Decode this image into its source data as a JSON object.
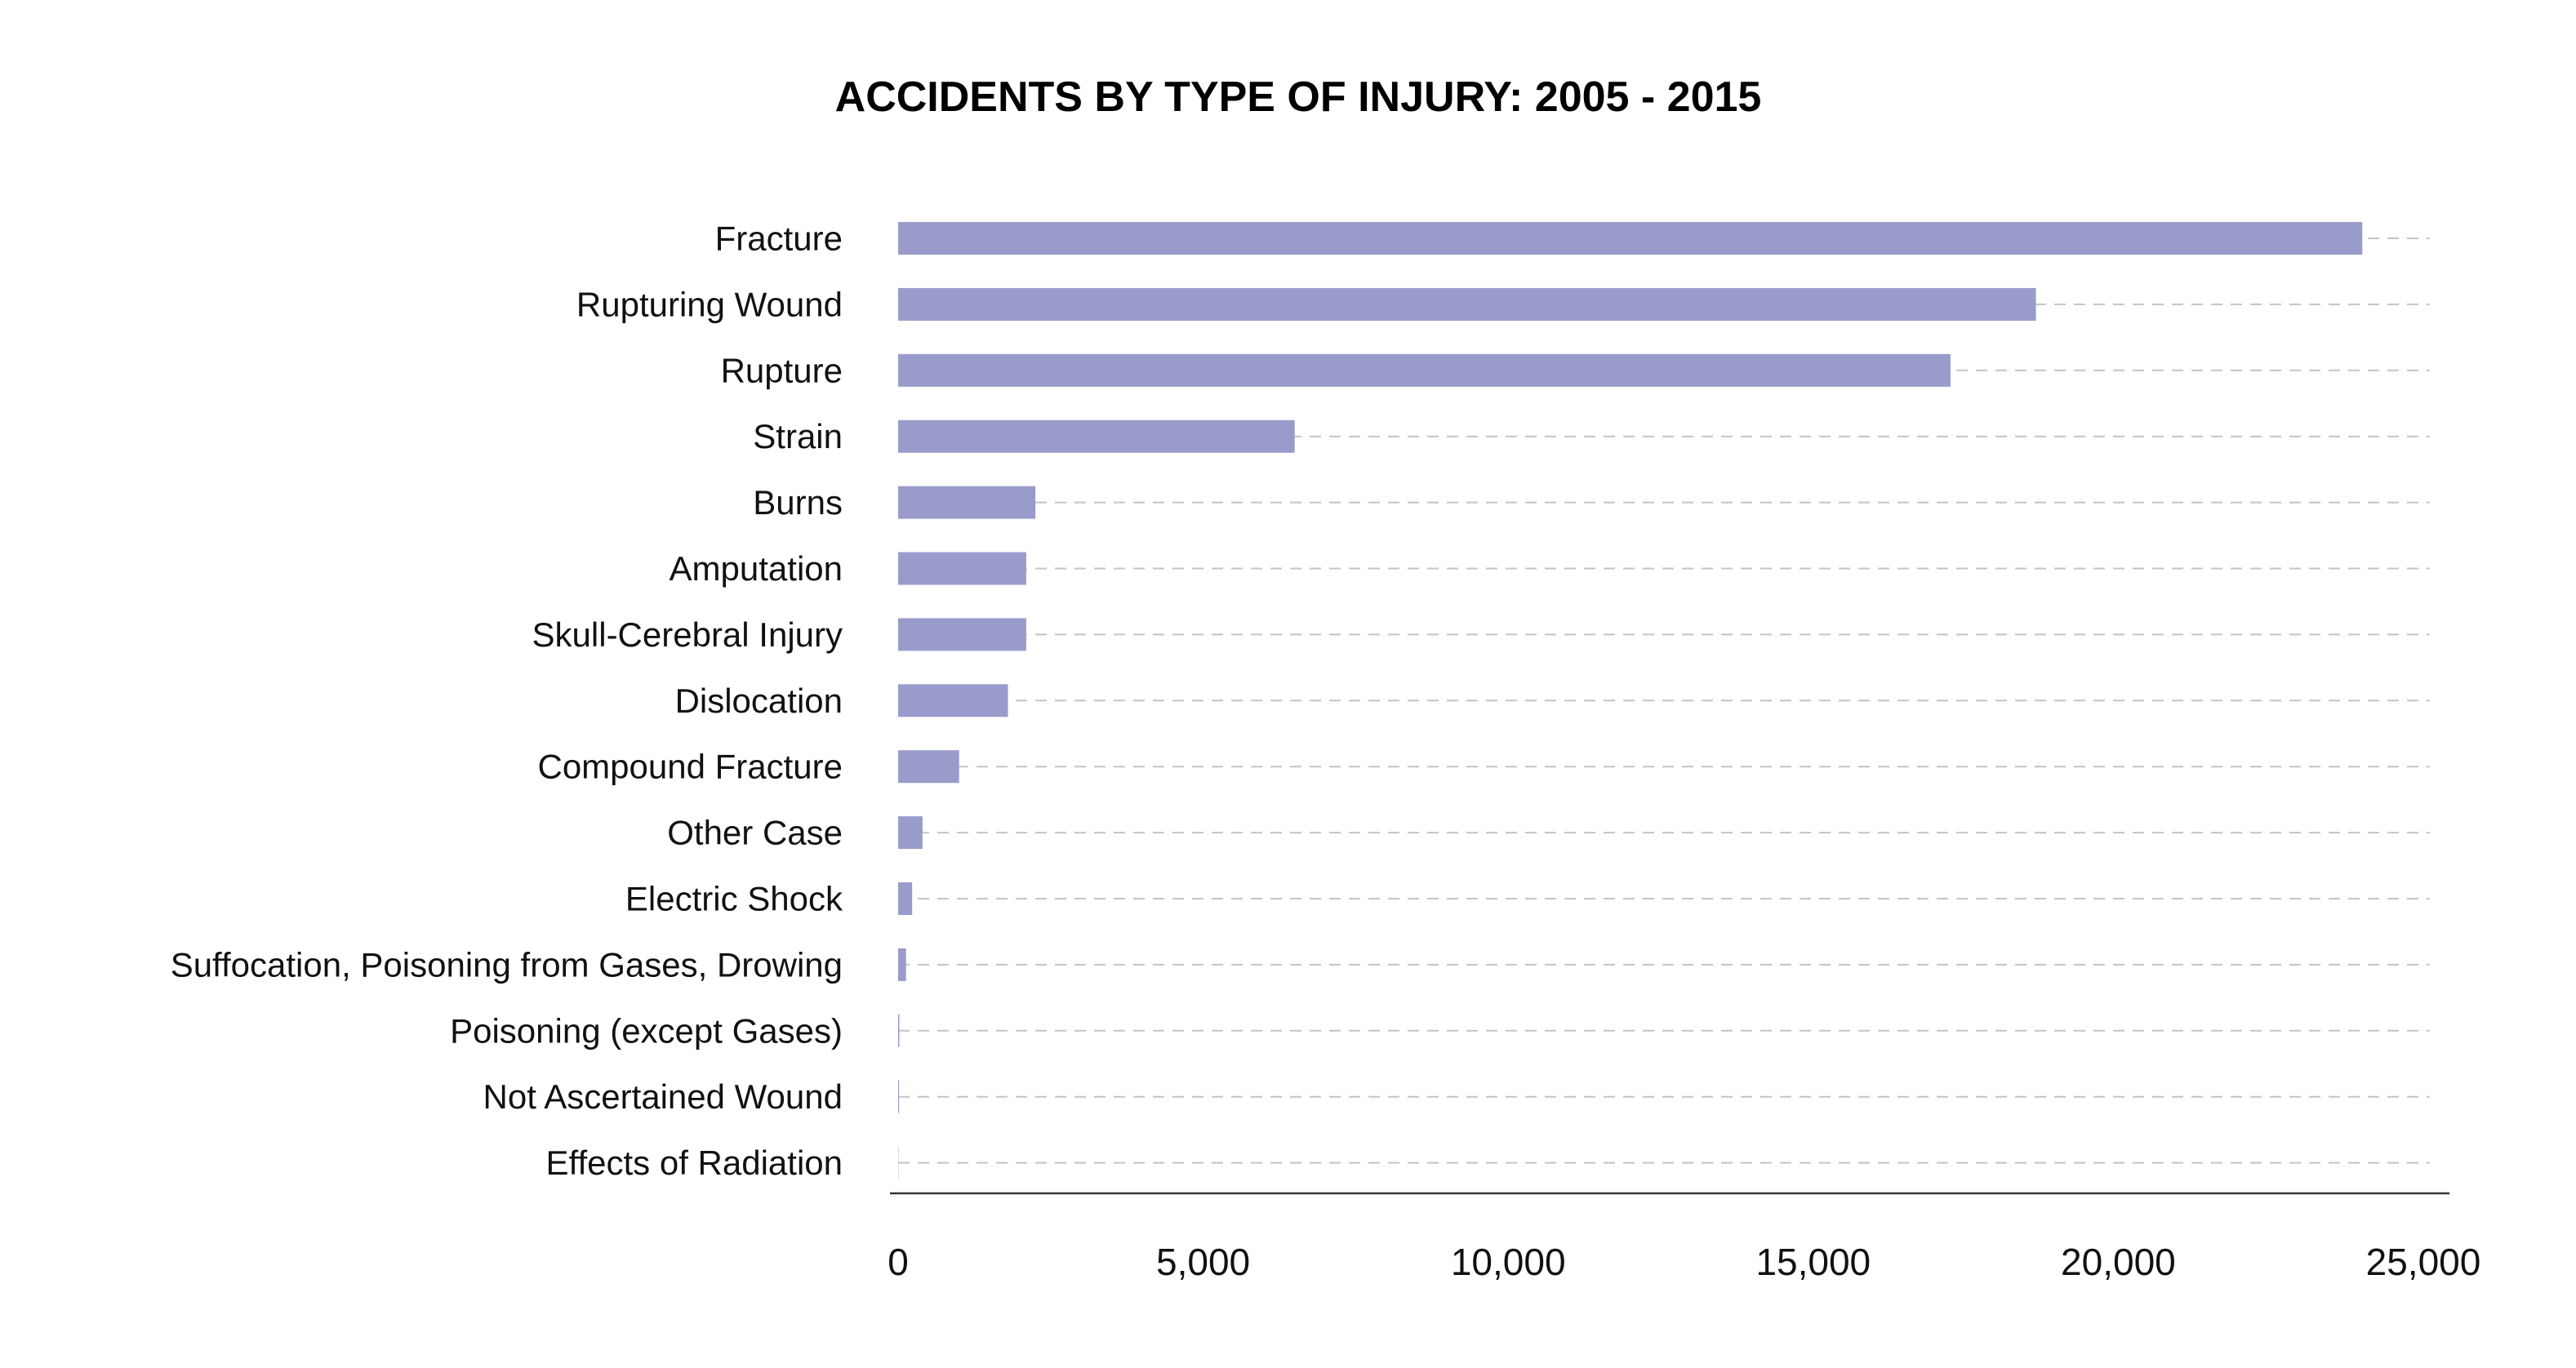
{
  "chart_data": {
    "type": "bar",
    "orientation": "horizontal",
    "title": "ACCIDENTS BY TYPE OF INJURY: 2005 - 2015",
    "xlabel": "",
    "ylabel": "",
    "categories": [
      "Fracture",
      "Rupturing Wound",
      "Rupture",
      "Strain",
      "Burns",
      "Amputation",
      "Skull-Cerebral Injury",
      "Dislocation",
      "Compound Fracture",
      "Other Case",
      "Electric Shock",
      "Suffocation, Poisoning from Gases, Drowing",
      "Poisoning (except Gases)",
      "Not Ascertained Wound",
      "Effects of Radiation"
    ],
    "values": [
      24000,
      18650,
      17250,
      6500,
      2250,
      2100,
      2100,
      1800,
      1000,
      400,
      230,
      130,
      20,
      15,
      5
    ],
    "xlim": [
      0,
      25000
    ],
    "ticks": [
      0,
      5000,
      10000,
      15000,
      20000,
      25000
    ],
    "tick_labels": [
      "0",
      "5,000",
      "10,000",
      "15,000",
      "20,000",
      "25,000"
    ],
    "bar_color": "#999bcb",
    "grid": true,
    "grid_style": "dashed horizontal guide lines per category",
    "legend": "none"
  }
}
